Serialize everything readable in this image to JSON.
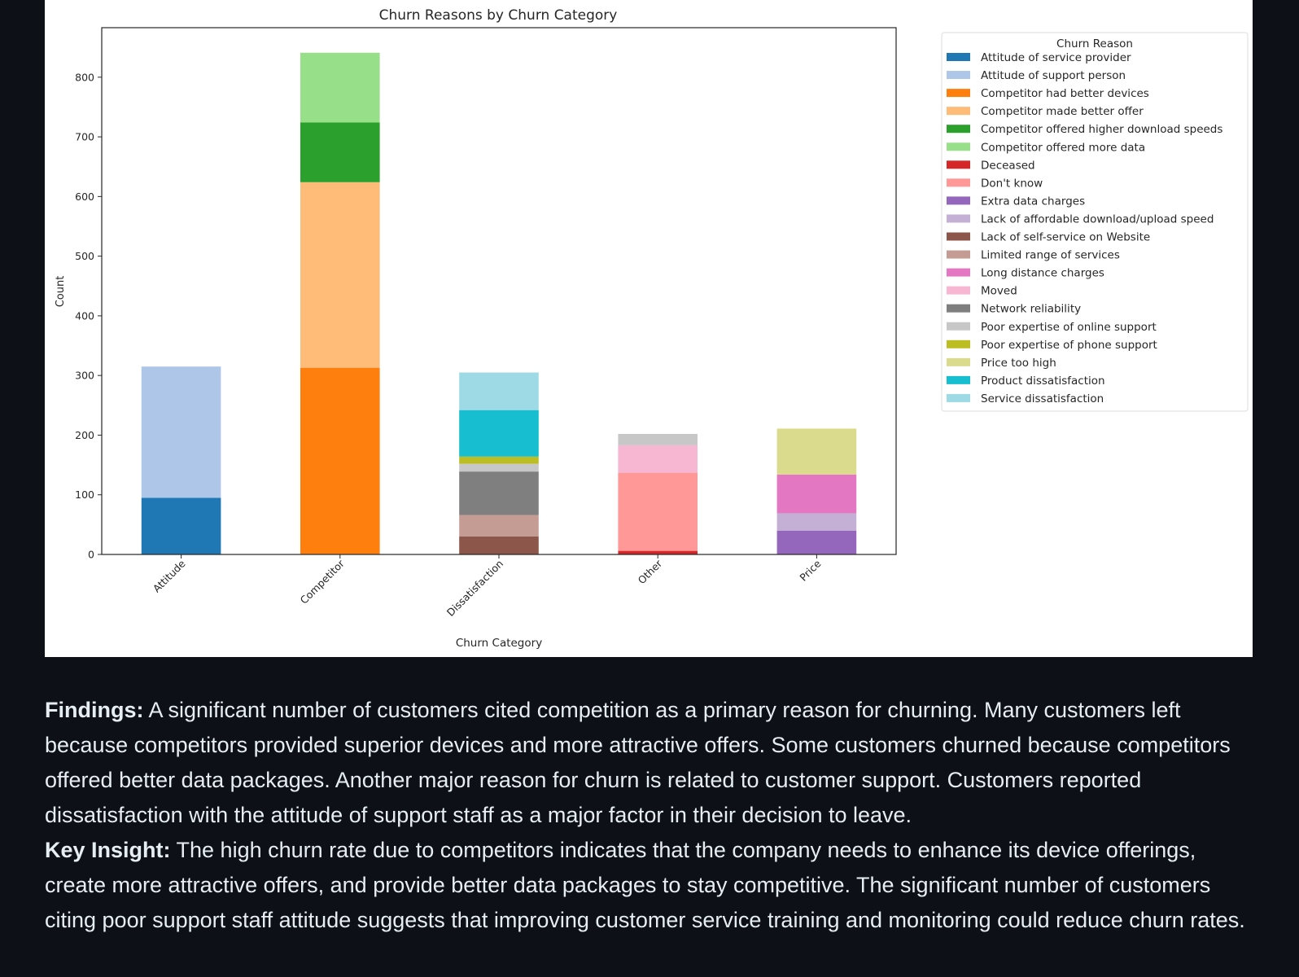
{
  "chart_data": {
    "type": "bar",
    "stacked": true,
    "title": "Churn Reasons by Churn Category",
    "xlabel": "Churn Category",
    "ylabel": "Count",
    "ylim": [
      0,
      883
    ],
    "yticks": [
      0,
      100,
      200,
      300,
      400,
      500,
      600,
      700,
      800
    ],
    "categories": [
      "Attitude",
      "Competitor",
      "Dissatisfaction",
      "Other",
      "Price"
    ],
    "grid": false,
    "legend": {
      "title": "Churn Reason",
      "placement": "outside-right-top"
    },
    "series": [
      {
        "name": "Attitude of service provider",
        "color": "#1f77b4",
        "values": [
          95,
          0,
          0,
          0,
          0
        ]
      },
      {
        "name": "Attitude of support person",
        "color": "#aec7e8",
        "values": [
          220,
          0,
          0,
          0,
          0
        ]
      },
      {
        "name": "Competitor had better devices",
        "color": "#ff7f0e",
        "values": [
          0,
          313,
          0,
          0,
          0
        ]
      },
      {
        "name": "Competitor made better offer",
        "color": "#ffbb78",
        "values": [
          0,
          311,
          0,
          0,
          0
        ]
      },
      {
        "name": "Competitor offered higher download speeds",
        "color": "#2ca02c",
        "values": [
          0,
          100,
          0,
          0,
          0
        ]
      },
      {
        "name": "Competitor offered more data",
        "color": "#98df8a",
        "values": [
          0,
          117,
          0,
          0,
          0
        ]
      },
      {
        "name": "Deceased",
        "color": "#d62728",
        "values": [
          0,
          0,
          0,
          6,
          0
        ]
      },
      {
        "name": "Don't know",
        "color": "#ff9896",
        "values": [
          0,
          0,
          0,
          131,
          0
        ]
      },
      {
        "name": "Extra data charges",
        "color": "#9467bd",
        "values": [
          0,
          0,
          0,
          0,
          40
        ]
      },
      {
        "name": "Lack of affordable download/upload speed",
        "color": "#c5b0d5",
        "values": [
          0,
          0,
          0,
          0,
          29
        ]
      },
      {
        "name": "Lack of self-service on Website",
        "color": "#8c564b",
        "values": [
          0,
          0,
          30,
          0,
          0
        ]
      },
      {
        "name": "Limited range of services",
        "color": "#c49c94",
        "values": [
          0,
          0,
          36,
          0,
          0
        ]
      },
      {
        "name": "Long distance charges",
        "color": "#e377c2",
        "values": [
          0,
          0,
          0,
          0,
          65
        ]
      },
      {
        "name": "Moved",
        "color": "#f7b6d2",
        "values": [
          0,
          0,
          0,
          46,
          0
        ]
      },
      {
        "name": "Network reliability",
        "color": "#7f7f7f",
        "values": [
          0,
          0,
          73,
          0,
          0
        ]
      },
      {
        "name": "Poor expertise of online support",
        "color": "#c7c7c7",
        "values": [
          0,
          0,
          13,
          19,
          0
        ]
      },
      {
        "name": "Poor expertise of phone support",
        "color": "#bcbd22",
        "values": [
          0,
          0,
          12,
          0,
          0
        ]
      },
      {
        "name": "Price too high",
        "color": "#dbdb8d",
        "values": [
          0,
          0,
          0,
          0,
          77
        ]
      },
      {
        "name": "Product dissatisfaction",
        "color": "#17becf",
        "values": [
          0,
          0,
          78,
          0,
          0
        ]
      },
      {
        "name": "Service dissatisfaction",
        "color": "#9edae5",
        "values": [
          0,
          0,
          63,
          0,
          0
        ]
      }
    ]
  },
  "findings": {
    "label": "Findings:",
    "text": " A significant number of customers cited competition as a primary reason for churning. Many customers left because competitors provided superior devices and more attractive offers. Some customers churned because competitors offered better data packages. Another major reason for churn is related to customer support. Customers reported dissatisfaction with the attitude of support staff as a major factor in their decision to leave."
  },
  "insight": {
    "label": "Key Insight:",
    "text": " The high churn rate due to competitors indicates that the company needs to enhance its device offerings, create more attractive offers, and provide better data packages to stay competitive. The significant number of customers citing poor support staff attitude suggests that improving customer service training and monitoring could reduce churn rates."
  }
}
